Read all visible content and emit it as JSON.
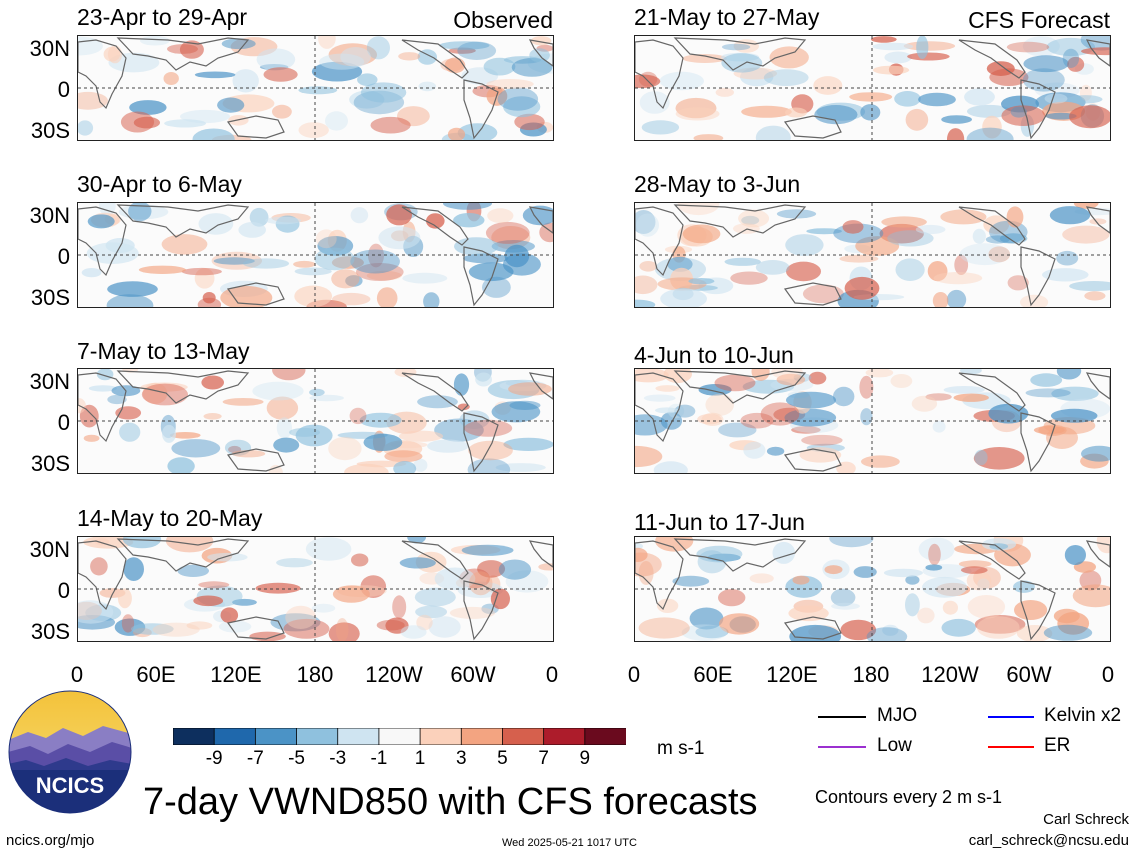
{
  "header": {
    "observed_label": "Observed",
    "forecast_label": "CFS Forecast"
  },
  "panels": [
    {
      "title": "23-Apr to 29-Apr"
    },
    {
      "title": "30-Apr to 6-May"
    },
    {
      "title": "7-May to 13-May"
    },
    {
      "title": "14-May to 20-May"
    },
    {
      "title": "21-May to 27-May"
    },
    {
      "title": "28-May to 3-Jun"
    },
    {
      "title": "4-Jun to 10-Jun"
    },
    {
      "title": "11-Jun to 17-Jun"
    }
  ],
  "lat_labels": [
    "30N",
    "0",
    "30S"
  ],
  "lon_labels": [
    "0",
    "60E",
    "120E",
    "180",
    "120W",
    "60W",
    "0"
  ],
  "colorbar": {
    "labels": [
      "-9",
      "-7",
      "-5",
      "-3",
      "-1",
      "1",
      "3",
      "5",
      "7",
      "9"
    ],
    "colors": [
      "#0d2f5e",
      "#1f68ac",
      "#4b93c6",
      "#8fc1de",
      "#cfe4f1",
      "#f8f8f8",
      "#fbd1bb",
      "#f3a481",
      "#d6604d",
      "#ad1c2b",
      "#6a0a1e"
    ],
    "unit": "m s-1"
  },
  "legend": {
    "items": [
      {
        "label": "MJO",
        "color": "#000000"
      },
      {
        "label": "Kelvin x2",
        "color": "#0000ff"
      },
      {
        "label": "Low",
        "color": "#9b30d0"
      },
      {
        "label": "ER",
        "color": "#ff0000"
      }
    ],
    "note": "Contours every 2 m s-1"
  },
  "logo": {
    "text": "NCICS"
  },
  "main_title": "7-day VWND850 with CFS forecasts",
  "footer": {
    "left": "ncics.org/mjo",
    "center": "Wed 2025-05-21 1017 UTC",
    "author": "Carl Schreck",
    "email": "carl_schreck@ncsu.edu"
  }
}
